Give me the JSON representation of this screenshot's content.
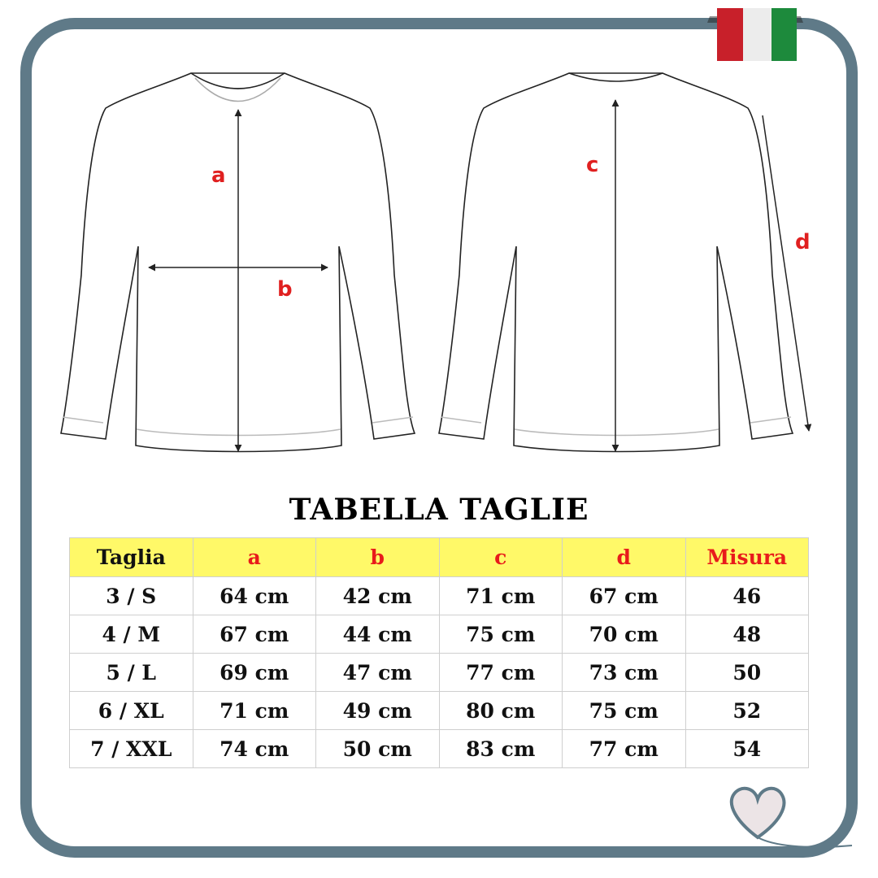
{
  "diagram": {
    "labels": {
      "a": "a",
      "b": "b",
      "c": "c",
      "d": "d"
    },
    "label_color": "#e02020",
    "frame_color": "#5f7a88",
    "flag_colors": [
      "#c8202a",
      "#f2f2f2",
      "#1d8a3c"
    ],
    "decorations": [
      "italian-flag-icon",
      "heart-icon"
    ]
  },
  "title": "TABELLA TAGLIE",
  "table": {
    "header_bg": "#fff968",
    "headers": [
      "Taglia",
      "a",
      "b",
      "c",
      "d",
      "Misura"
    ],
    "rows": [
      [
        "3 / S",
        "64 cm",
        "42 cm",
        "71 cm",
        "67 cm",
        "46"
      ],
      [
        "4 / M",
        "67 cm",
        "44 cm",
        "75 cm",
        "70 cm",
        "48"
      ],
      [
        "5 / L",
        "69 cm",
        "47 cm",
        "77 cm",
        "73 cm",
        "50"
      ],
      [
        "6 / XL",
        "71 cm",
        "49 cm",
        "80 cm",
        "75 cm",
        "52"
      ],
      [
        "7 / XXL",
        "74 cm",
        "50 cm",
        "83 cm",
        "77 cm",
        "54"
      ]
    ]
  }
}
